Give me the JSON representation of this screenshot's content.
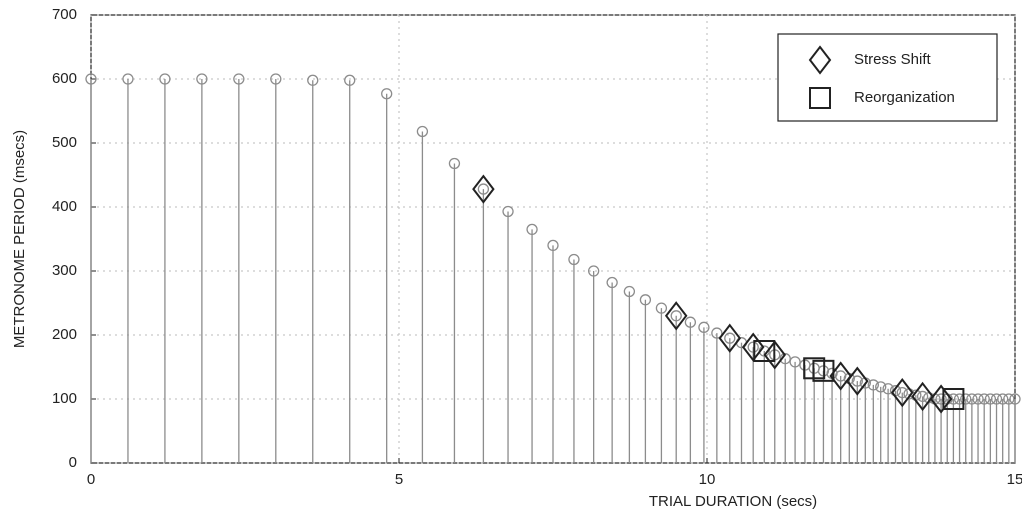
{
  "chart_data": {
    "type": "stem",
    "x_label": "TRIAL DURATION  (secs)",
    "y_label": "METRONOME PERIOD  (msecs)",
    "xlim": [
      0,
      15
    ],
    "xticks": [
      0,
      5,
      10,
      15
    ],
    "ylim": [
      0,
      700
    ],
    "yticks": [
      0,
      100,
      200,
      300,
      400,
      500,
      600,
      700
    ],
    "grid": true,
    "legend": "upper right",
    "color": "#8c8c8c",
    "x": [
      0,
      0.6,
      1.2,
      1.8,
      2.4,
      3.0,
      3.6,
      4.2,
      4.8,
      5.38,
      5.9,
      6.37,
      6.77,
      7.16,
      7.5,
      7.84,
      8.16,
      8.46,
      8.74,
      9.0,
      9.26,
      9.5,
      9.73,
      9.95,
      10.16,
      10.37,
      10.56,
      10.75,
      10.93,
      11.1,
      11.27,
      11.43,
      11.59,
      11.74,
      11.89,
      12.03,
      12.17,
      12.31,
      12.44,
      12.57,
      12.7,
      12.82,
      12.94,
      13.06,
      13.17,
      13.28,
      13.39,
      13.5,
      13.6,
      13.7,
      13.8,
      13.9,
      14.0,
      14.1,
      14.2,
      14.3,
      14.4,
      14.5,
      14.6,
      14.7,
      14.8,
      14.9,
      15.0
    ],
    "values": [
      600,
      600,
      600,
      600,
      600,
      600,
      598,
      598,
      577,
      518,
      468,
      428,
      393,
      365,
      340,
      318,
      300,
      282,
      268,
      255,
      242,
      230,
      220,
      212,
      203,
      195,
      188,
      181,
      175,
      169,
      163,
      158,
      153,
      148,
      144,
      140,
      136,
      132,
      128,
      125,
      122,
      119,
      116,
      113,
      110,
      108,
      106,
      104,
      102,
      100,
      100,
      100,
      100,
      100,
      100,
      100,
      100,
      100,
      100,
      100,
      100,
      100,
      100
    ],
    "series": [
      {
        "name": "Stress Shift",
        "marker": "diamond",
        "color": "#222222",
        "x": [
          6.37,
          9.5,
          10.37,
          10.75,
          11.1,
          12.17,
          12.44,
          13.17,
          13.5,
          13.8
        ],
        "values": [
          428,
          230,
          195,
          181,
          169,
          136,
          128,
          110,
          104,
          100
        ]
      },
      {
        "name": "Reorganization",
        "marker": "square",
        "color": "#222222",
        "x": [
          10.93,
          11.74,
          11.89,
          14.0
        ],
        "values": [
          175,
          148,
          144,
          100
        ]
      }
    ]
  }
}
